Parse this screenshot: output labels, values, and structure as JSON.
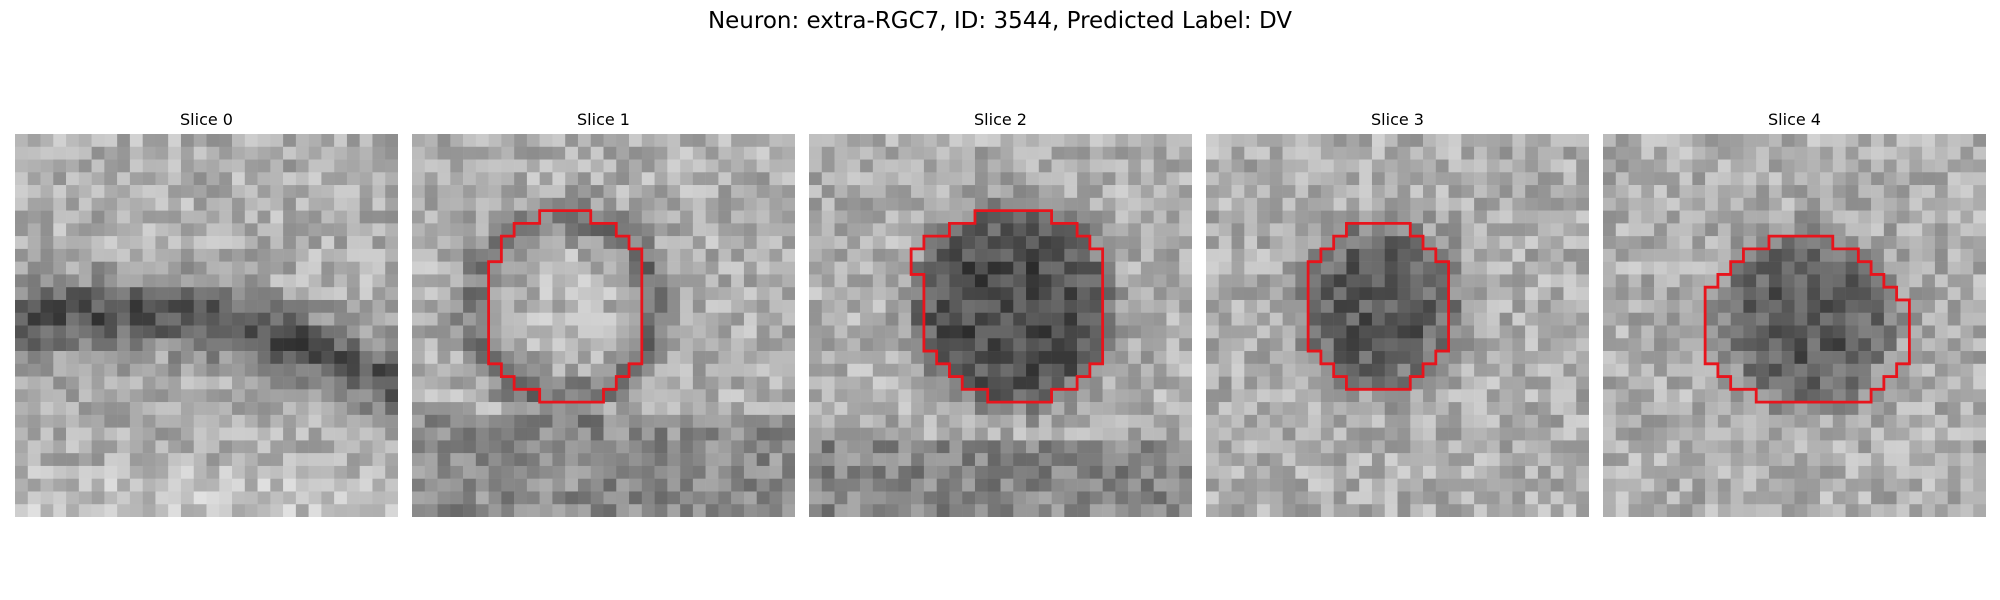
{
  "figure": {
    "title": "Neuron: extra-RGC7, ID: 3544, Predicted Label: DV",
    "outline_color": "#e8141c"
  },
  "panels": [
    {
      "title": "Slice 0",
      "has_outline": false
    },
    {
      "title": "Slice 1",
      "has_outline": true
    },
    {
      "title": "Slice 2",
      "has_outline": true
    },
    {
      "title": "Slice 3",
      "has_outline": true
    },
    {
      "title": "Slice 4",
      "has_outline": true
    }
  ]
}
